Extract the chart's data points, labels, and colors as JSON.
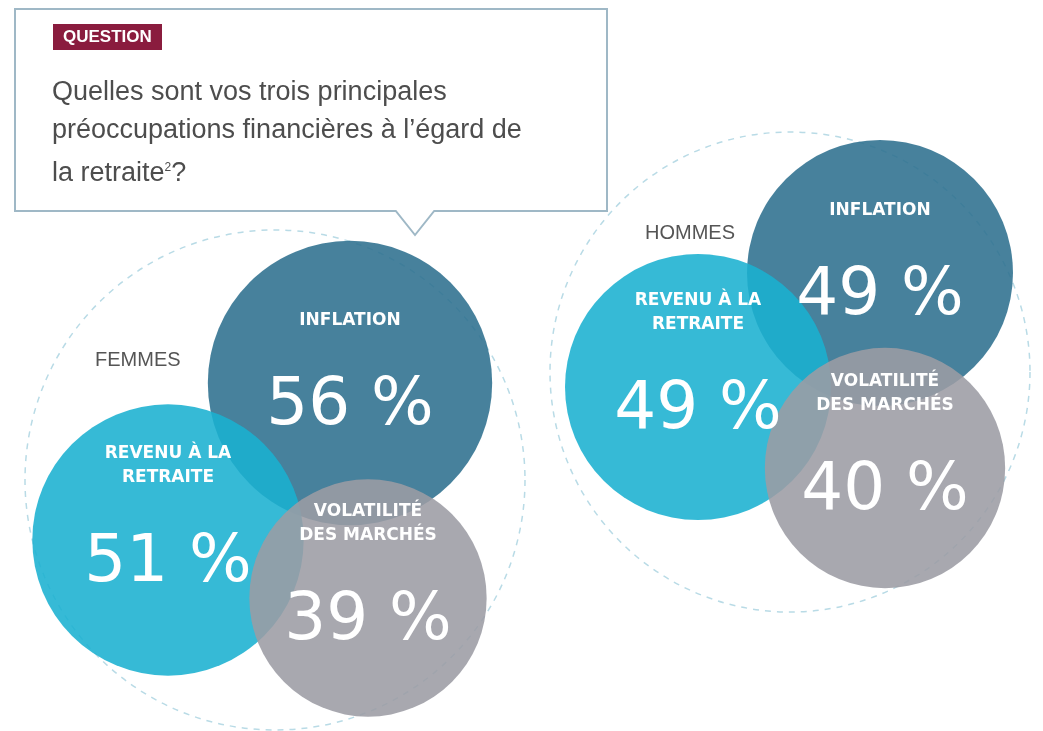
{
  "chart_data": {
    "type": "other",
    "title": "Quelles sont vos trois principales préoccupations financières à l’égard de la retraite$^{2}$?",
    "annotations": [
      "QUESTION"
    ],
    "categories": [
      "INFLATION",
      "REVENU À LA RETRAITE",
      "VOLATILITÉ DES MARCHÉS"
    ],
    "series": [
      {
        "name": "FEMMES",
        "values": [
          56,
          51,
          39
        ],
        "value_labels": [
          "56 %",
          "51 %",
          "39 %"
        ],
        "colors": [
          "#2e6f8e",
          "#1ab0d0",
          "#9c9ca4"
        ]
      },
      {
        "name": "HOMMES",
        "values": [
          49,
          49,
          40
        ],
        "value_labels": [
          "49 %",
          "49 %",
          "40 %"
        ],
        "colors": [
          "#2e6f8e",
          "#1ab0d0",
          "#9c9ca4"
        ]
      }
    ]
  }
}
